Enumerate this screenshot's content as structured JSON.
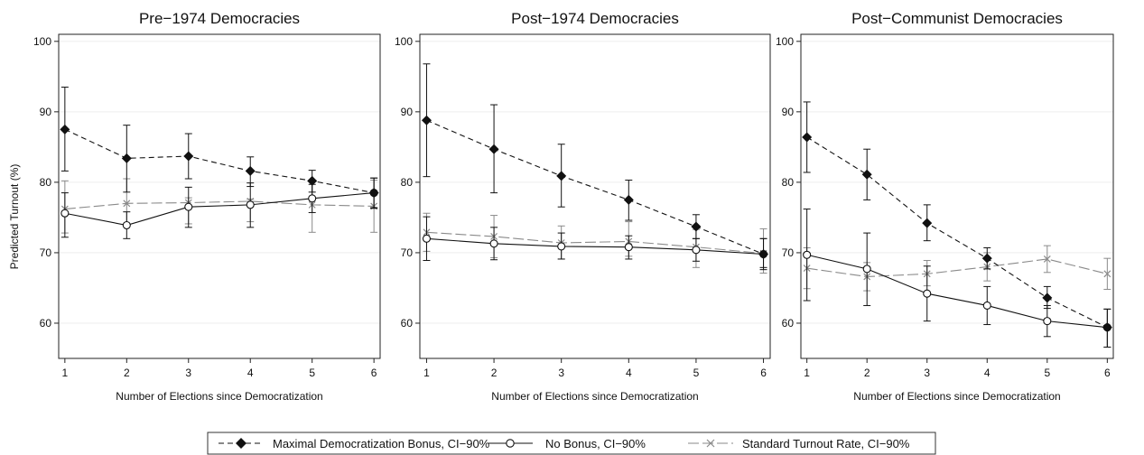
{
  "ylabel": "Predicted Turnout (%)",
  "xlabel": "Number of Elections since Democratization",
  "legend": {
    "entries": [
      "Maximal Democratization Bonus, CI−90%",
      "No Bonus, CI−90%",
      "Standard Turnout Rate, CI−90%"
    ],
    "placement": "bottom-center"
  },
  "colors": {
    "maximal": "#111111",
    "nobonus": "#111111",
    "standard": "#8a8a8a",
    "grid": "#ededed"
  },
  "chart_data": [
    {
      "type": "line",
      "title": "Pre−1974 Democracies",
      "x": [
        1,
        2,
        3,
        4,
        5,
        6
      ],
      "xlim": [
        0.9,
        6.1
      ],
      "ylim": [
        55,
        101
      ],
      "yticks": [
        60,
        70,
        80,
        90,
        100
      ],
      "series": [
        {
          "name": "Maximal Democratization Bonus, CI−90%",
          "values": [
            87.5,
            83.4,
            83.7,
            81.6,
            80.2,
            78.5
          ],
          "lower": [
            81.6,
            78.6,
            80.5,
            79.4,
            78.6,
            76.4
          ],
          "upper": [
            93.5,
            88.1,
            86.9,
            83.6,
            81.7,
            80.6
          ]
        },
        {
          "name": "No Bonus, CI−90%",
          "values": [
            75.6,
            73.9,
            76.5,
            76.8,
            77.7,
            78.5
          ],
          "lower": [
            72.2,
            72.0,
            73.6,
            73.6,
            75.7,
            76.3
          ],
          "upper": [
            78.5,
            75.8,
            79.3,
            79.9,
            79.7,
            80.6
          ]
        },
        {
          "name": "Standard Turnout Rate, CI−90%",
          "values": [
            76.2,
            77.0,
            77.1,
            77.3,
            76.8,
            76.6
          ],
          "lower": [
            72.8,
            73.9,
            74.1,
            74.4,
            72.9,
            72.9
          ],
          "upper": [
            80.2,
            80.5,
            77.8,
            77.6,
            80.2,
            80.3
          ]
        }
      ]
    },
    {
      "type": "line",
      "title": "Post−1974 Democracies",
      "x": [
        1,
        2,
        3,
        4,
        5,
        6
      ],
      "xlim": [
        0.9,
        6.1
      ],
      "ylim": [
        55,
        101
      ],
      "yticks": [
        60,
        70,
        80,
        90,
        100
      ],
      "series": [
        {
          "name": "Maximal Democratization Bonus, CI−90%",
          "values": [
            88.8,
            84.7,
            80.9,
            77.5,
            73.7,
            69.8
          ],
          "lower": [
            80.8,
            78.5,
            76.5,
            74.6,
            72.0,
            67.9
          ],
          "upper": [
            96.8,
            91.0,
            85.4,
            80.3,
            75.4,
            72.0
          ]
        },
        {
          "name": "No Bonus, CI−90%",
          "values": [
            72.0,
            71.3,
            70.9,
            70.8,
            70.4,
            69.8
          ],
          "lower": [
            68.9,
            69.0,
            69.1,
            69.1,
            68.8,
            67.6
          ],
          "upper": [
            75.1,
            73.6,
            72.8,
            72.4,
            72.0,
            72.0
          ]
        },
        {
          "name": "Standard Turnout Rate, CI−90%",
          "values": [
            72.9,
            72.3,
            71.4,
            71.6,
            70.8,
            69.9
          ],
          "lower": [
            70.2,
            69.3,
            69.1,
            69.5,
            67.9,
            67.1
          ],
          "upper": [
            75.6,
            75.3,
            73.8,
            74.4,
            73.3,
            73.4
          ]
        }
      ]
    },
    {
      "type": "line",
      "title": "Post−Communist Democracies",
      "x": [
        1,
        2,
        3,
        4,
        5,
        6
      ],
      "xlim": [
        0.9,
        6.1
      ],
      "ylim": [
        55,
        101
      ],
      "yticks": [
        60,
        70,
        80,
        90,
        100
      ],
      "series": [
        {
          "name": "Maximal Democratization Bonus, CI−90%",
          "values": [
            86.4,
            81.1,
            74.2,
            69.2,
            63.6,
            59.4
          ],
          "lower": [
            81.4,
            77.5,
            71.7,
            67.7,
            62.1,
            56.6
          ],
          "upper": [
            91.4,
            84.7,
            76.8,
            70.7,
            65.2,
            62.0
          ]
        },
        {
          "name": "No Bonus, CI−90%",
          "values": [
            69.7,
            67.7,
            64.2,
            62.5,
            60.3,
            59.4
          ],
          "lower": [
            63.2,
            62.5,
            60.3,
            59.8,
            58.1,
            56.6
          ],
          "upper": [
            76.2,
            72.8,
            68.1,
            65.2,
            62.5,
            62.0
          ]
        },
        {
          "name": "Standard Turnout Rate, CI−90%",
          "values": [
            67.8,
            66.6,
            67.0,
            68.0,
            69.1,
            67.0
          ],
          "lower": [
            64.9,
            64.6,
            65.3,
            66.0,
            67.2,
            64.8
          ],
          "upper": [
            70.7,
            68.6,
            68.9,
            70.0,
            71.0,
            69.2
          ]
        }
      ]
    }
  ]
}
